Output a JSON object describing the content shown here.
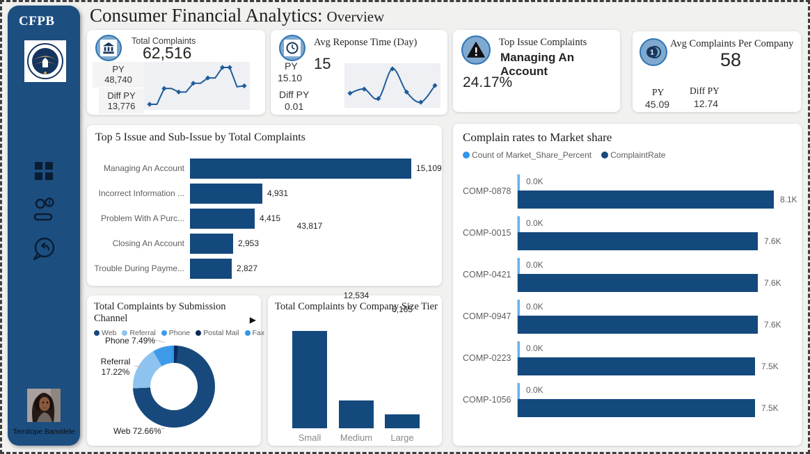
{
  "page": {
    "title_main": "Consumer Financial Analytics:",
    "title_sub": "Overview"
  },
  "sidebar": {
    "logo_text": "CFPB",
    "user_name": "Temitope Bamidele"
  },
  "kpi_cards": [
    {
      "title": "Total Complaints",
      "value": "62,516",
      "py_label": "PY",
      "py_value": "48,740",
      "diff_label": "Diff PY",
      "diff_value": "13,776",
      "icon": "bank-icon",
      "sparkline": {
        "style": "step",
        "values": [
          1.0,
          1.0,
          1.9,
          1.9,
          1.7,
          1.7,
          2.2,
          2.2,
          2.5,
          2.5,
          3.1,
          3.1,
          2.0,
          2.05
        ],
        "markers": [
          0,
          2,
          4,
          6,
          8,
          10,
          11,
          13
        ]
      }
    },
    {
      "title": "Avg Reponse Time (Day)",
      "value": "15",
      "py_label": "PY",
      "py_value": "15.10",
      "diff_label": "Diff PY",
      "diff_value": "0.01",
      "icon": "clock-icon",
      "sparkline": {
        "style": "smooth",
        "values": [
          4.5,
          5.2,
          3.6,
          8.6,
          4.7,
          3.0,
          5.8
        ],
        "markers": [
          0,
          1,
          2,
          3,
          4,
          5,
          6
        ]
      }
    },
    {
      "title": "Top Issue Complaints",
      "value": "Managing An Account",
      "pct_value": "24.17%",
      "icon": "warning-icon"
    },
    {
      "title": "Avg Complaints Per Company",
      "value": "58",
      "py_label": "PY",
      "py_value": "45.09",
      "diff_label": "Diff PY",
      "diff_value": "12.74",
      "icon": "coins-icon"
    }
  ],
  "chart_data": [
    {
      "id": "top5_issues",
      "type": "bar",
      "orientation": "horizontal",
      "title": "Top 5 Issue and Sub-Issue by Total Complaints",
      "categories": [
        "Managing An Account",
        "Incorrect Information ...",
        "Problem With A Purc...",
        "Closing An Account",
        "Trouble During Payme..."
      ],
      "values": [
        15109,
        4931,
        4415,
        2953,
        2827
      ],
      "value_labels": [
        "15,109",
        "4,931",
        "4,415",
        "2,953",
        "2,827"
      ],
      "bar_color": "#14497d",
      "xlim": [
        0,
        15109
      ]
    },
    {
      "id": "submission_channel",
      "type": "pie",
      "title": "Total Complaints by Submission Channel",
      "legend": [
        {
          "label": "Web",
          "color": "#17497c"
        },
        {
          "label": "Referral",
          "color": "#8fc3ef"
        },
        {
          "label": "Phone",
          "color": "#3d9be9"
        },
        {
          "label": "Postal Mail",
          "color": "#0b2a5b"
        },
        {
          "label": "Fax",
          "color": "#2f96ec"
        }
      ],
      "slices": [
        {
          "label": "Postal Mail",
          "pct": 1.63,
          "color": "#0b2a5b"
        },
        {
          "label": "Web",
          "pct": 72.66,
          "color": "#17497c"
        },
        {
          "label": "Referral",
          "pct": 17.22,
          "color": "#8fc3ef"
        },
        {
          "label": "Phone",
          "pct": 7.49,
          "color": "#3d9be9"
        },
        {
          "label": "Fax",
          "pct": 1.0,
          "color": "#2f96ec"
        }
      ],
      "callouts": {
        "phone": "Phone 7.49%",
        "referral_line1": "Referral",
        "referral_line2": "17.22%",
        "web": "Web 72.66%"
      }
    },
    {
      "id": "company_size_tier",
      "type": "bar",
      "orientation": "vertical",
      "title": "Total Complaints by Company Size Tier",
      "categories": [
        "Small",
        "Medium",
        "Large"
      ],
      "values": [
        43817,
        12534,
        6165
      ],
      "value_labels": [
        "43,817",
        "12,534",
        "6,165"
      ],
      "bar_color": "#14497d",
      "ylim": [
        0,
        43817
      ]
    },
    {
      "id": "market_share",
      "type": "bar",
      "orientation": "horizontal",
      "grouped": true,
      "title": "Complain rates to Market share",
      "legend": [
        {
          "label": "Count of Market_Share_Percent",
          "color": "#2f96ec"
        },
        {
          "label": "ComplaintRate",
          "color": "#17497c"
        }
      ],
      "categories": [
        "COMP-0878",
        "COMP-0015",
        "COMP-0421",
        "COMP-0947",
        "COMP-0223",
        "COMP-1056"
      ],
      "series": [
        {
          "name": "Count of Market_Share_Percent",
          "values": [
            0,
            0,
            0,
            0,
            0,
            0
          ],
          "value_labels": [
            "0.0K",
            "0.0K",
            "0.0K",
            "0.0K",
            "0.0K",
            "0.0K"
          ],
          "color": "#66b2f0"
        },
        {
          "name": "ComplaintRate",
          "values": [
            8100,
            7600,
            7600,
            7600,
            7500,
            7500
          ],
          "value_labels": [
            "8.1K",
            "7.6K",
            "7.6K",
            "7.6K",
            "7.5K",
            "7.5K"
          ],
          "color": "#14497d"
        }
      ],
      "xlim": [
        0,
        8100
      ]
    }
  ],
  "icons": {
    "legend_arrow": "▶"
  }
}
